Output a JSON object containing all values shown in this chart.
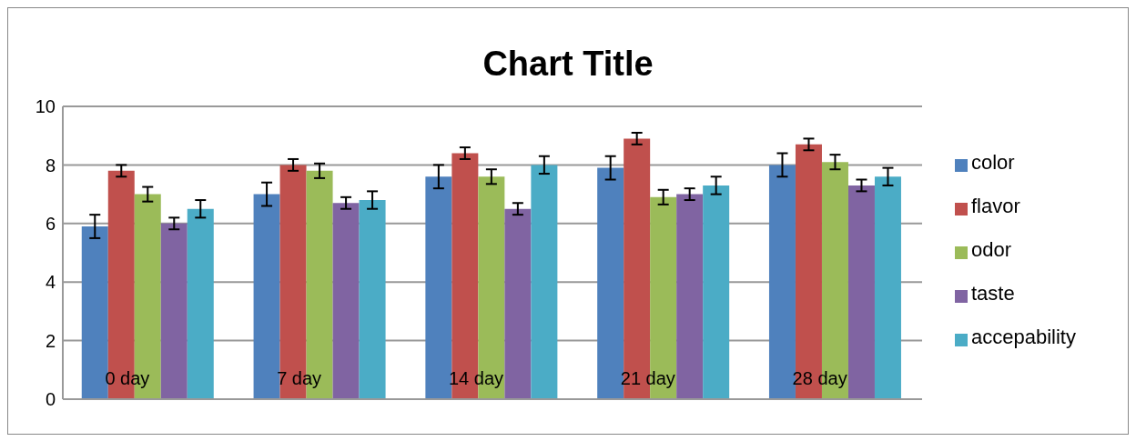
{
  "chart_data": {
    "type": "bar",
    "title": "Chart Title",
    "categories": [
      "0 day",
      "7 day",
      "14 day",
      "21 day",
      "28 day"
    ],
    "series": [
      {
        "name": "color",
        "color": "#4f81bd",
        "values": [
          5.9,
          7.0,
          7.6,
          7.9,
          8.0
        ],
        "errors": [
          0.4,
          0.4,
          0.4,
          0.4,
          0.4
        ]
      },
      {
        "name": "flavor",
        "color": "#c0504d",
        "values": [
          7.8,
          8.0,
          8.4,
          8.9,
          8.7
        ],
        "errors": [
          0.2,
          0.2,
          0.2,
          0.2,
          0.2
        ]
      },
      {
        "name": "odor",
        "color": "#9bbb59",
        "values": [
          7.0,
          7.8,
          7.6,
          6.9,
          8.1
        ],
        "errors": [
          0.25,
          0.25,
          0.25,
          0.25,
          0.25
        ]
      },
      {
        "name": "taste",
        "color": "#8064a2",
        "values": [
          6.0,
          6.7,
          6.5,
          7.0,
          7.3
        ],
        "errors": [
          0.2,
          0.2,
          0.2,
          0.2,
          0.2
        ]
      },
      {
        "name": "accepability",
        "color": "#4bacc6",
        "values": [
          6.5,
          6.8,
          8.0,
          7.3,
          7.6
        ],
        "errors": [
          0.3,
          0.3,
          0.3,
          0.3,
          0.3
        ]
      }
    ],
    "ylim": [
      0,
      10
    ],
    "yticks": [
      0,
      2,
      4,
      6,
      8,
      10
    ],
    "grid": "y",
    "legend": "right"
  }
}
